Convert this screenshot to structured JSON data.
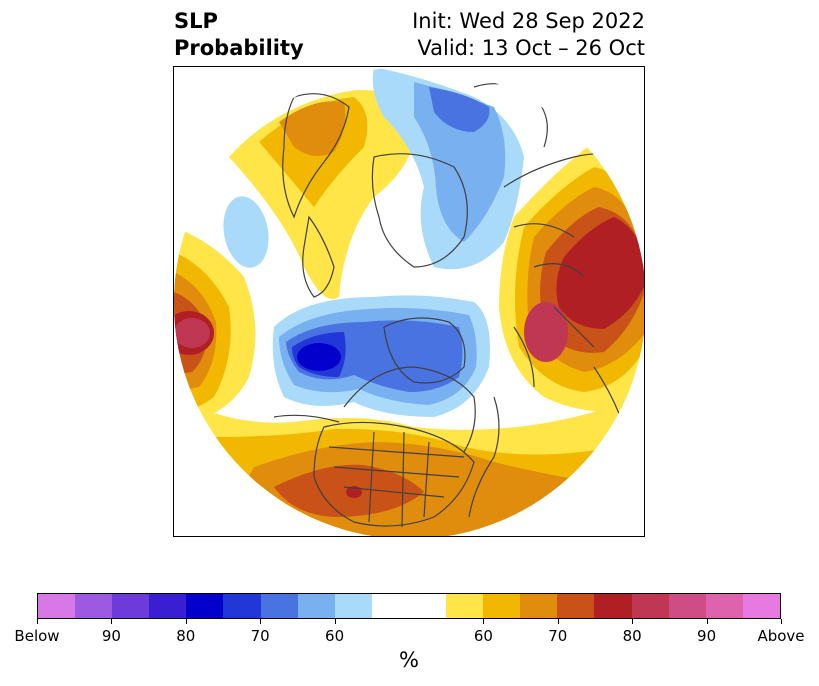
{
  "header": {
    "variable": "SLP",
    "metric": "Probability",
    "init": "Init: Wed 28 Sep 2022",
    "valid": "Valid: 13 Oct – 26 Oct"
  },
  "colorbar": {
    "unit": "%",
    "segments": [
      "#d877e6",
      "#9d59df",
      "#6c3bd9",
      "#3a1ed2",
      "#0300cb",
      "#2237d8",
      "#4a73e2",
      "#78b0f0",
      "#a9dafa",
      "#ffffff",
      "#ffffff",
      "#ffe548",
      "#f2b801",
      "#e08d0e",
      "#c85218",
      "#b01f24",
      "#c03754",
      "#cf4c84",
      "#dd63ad",
      "#e77ae0"
    ],
    "ticks": [
      "Below",
      "90",
      "80",
      "70",
      "60",
      "60",
      "70",
      "80",
      "90",
      "Above"
    ]
  },
  "palette": {
    "land_outline": "#404040",
    "below_60": "#a9dafa",
    "below_70": "#78b0f0",
    "below_80": "#4a73e2",
    "below_90": "#2237d8",
    "below_max": "#0300cb",
    "above_50": "#ffe548",
    "above_60": "#f2b801",
    "above_70": "#e08d0e",
    "above_80": "#c85218",
    "above_90": "#b01f24",
    "above_max": "#c03754"
  }
}
